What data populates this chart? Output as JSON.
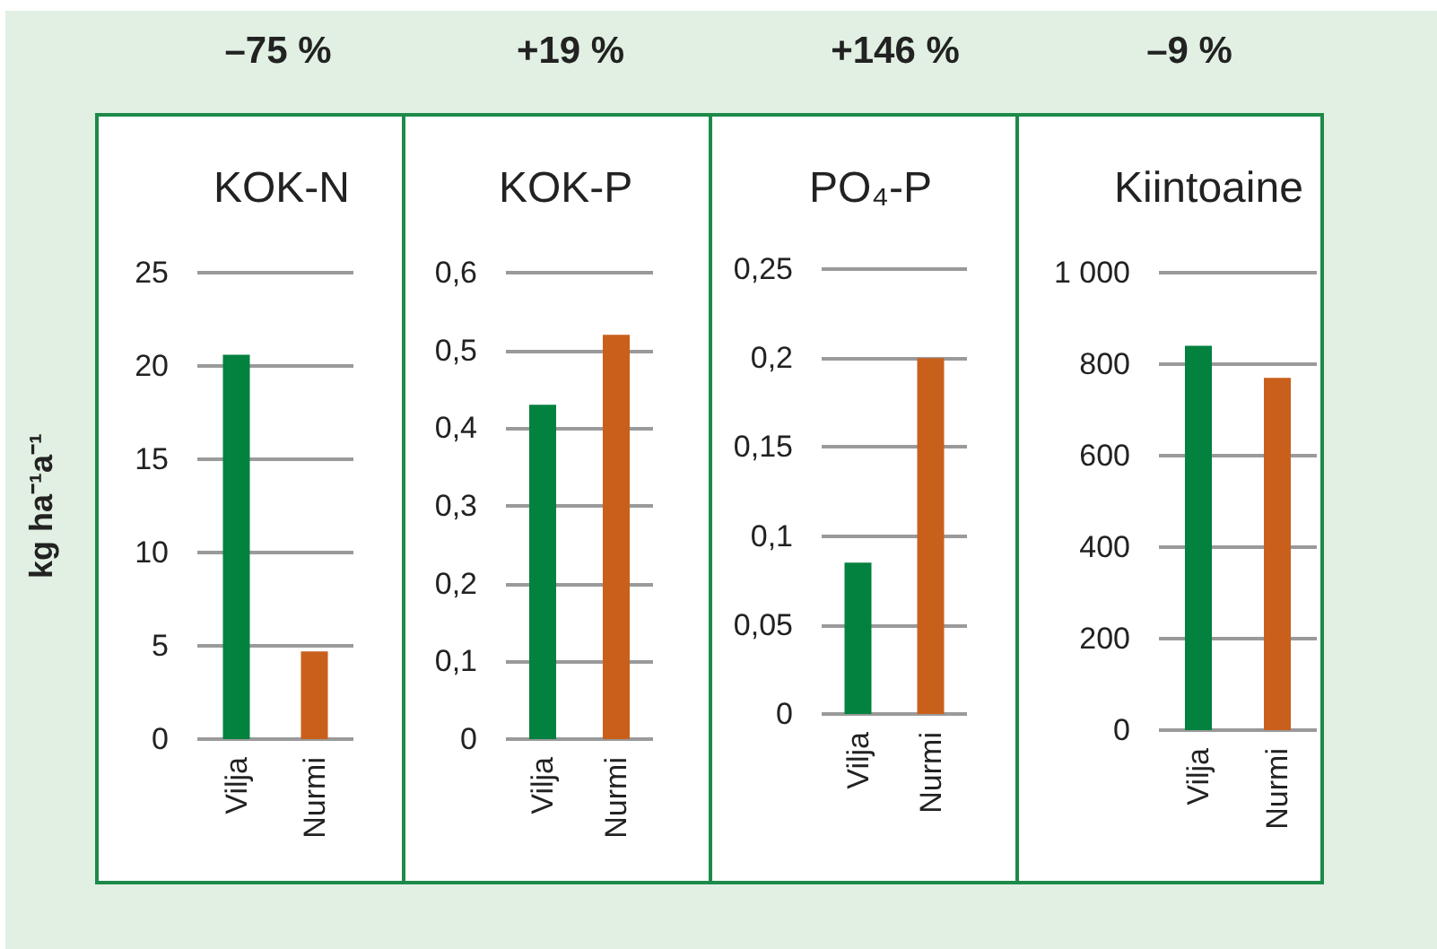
{
  "chart_data": [
    {
      "type": "bar",
      "title": "KOK-N",
      "annotations": [
        "–75 %"
      ],
      "ylabel": "kg ha⁻¹a⁻¹",
      "categories": [
        "Vilja",
        "Nurmi"
      ],
      "values": [
        20.6,
        4.7
      ],
      "colors": [
        "#03813e",
        "#c8601c"
      ],
      "ylim": [
        0,
        25
      ],
      "yticks": [
        0,
        5,
        10,
        15,
        20,
        25
      ],
      "grid": "y"
    },
    {
      "type": "bar",
      "title": "KOK-P",
      "annotations": [
        "+19 %"
      ],
      "categories": [
        "Vilja",
        "Nurmi"
      ],
      "values": [
        0.43,
        0.52
      ],
      "colors": [
        "#03813e",
        "#c8601c"
      ],
      "ylim": [
        0,
        0.6
      ],
      "yticks": [
        {
          "value": 0,
          "label": "0"
        },
        {
          "value": 0.1,
          "label": "0,1"
        },
        {
          "value": 0.2,
          "label": "0,2"
        },
        {
          "value": 0.3,
          "label": "0,3"
        },
        {
          "value": 0.4,
          "label": "0,4"
        },
        {
          "value": 0.5,
          "label": "0,5"
        },
        {
          "value": 0.6,
          "label": "0,6"
        }
      ],
      "grid": "y"
    },
    {
      "type": "bar",
      "title": "PO₄-P",
      "annotations": [
        "+146 %"
      ],
      "categories": [
        "Vilja",
        "Nurmi"
      ],
      "values": [
        0.085,
        0.2
      ],
      "colors": [
        "#03813e",
        "#c8601c"
      ],
      "ylim": [
        0,
        0.25
      ],
      "yticks": [
        {
          "value": 0,
          "label": "0"
        },
        {
          "value": 0.05,
          "label": "0,05"
        },
        {
          "value": 0.1,
          "label": "0,1"
        },
        {
          "value": 0.15,
          "label": "0,15"
        },
        {
          "value": 0.2,
          "label": "0,2"
        },
        {
          "value": 0.25,
          "label": "0,25"
        }
      ],
      "grid": "y"
    },
    {
      "type": "bar",
      "title": "Kiintoaine",
      "annotations": [
        "–9 %"
      ],
      "categories": [
        "Vilja",
        "Nurmi"
      ],
      "values": [
        840,
        770
      ],
      "colors": [
        "#03813e",
        "#c8601c"
      ],
      "ylim": [
        0,
        1000
      ],
      "yticks": [
        0,
        200,
        400,
        600,
        800,
        {
          "value": 1000,
          "label": "1 000"
        }
      ],
      "grid": "y"
    }
  ]
}
